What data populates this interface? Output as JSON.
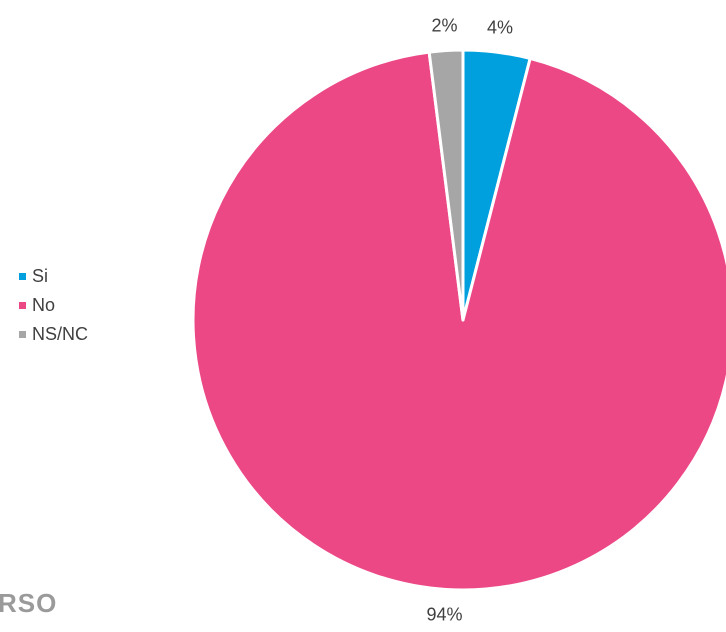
{
  "chart_data": {
    "type": "pie",
    "title": "",
    "slices": [
      {
        "label": "Si",
        "value": 4,
        "display": "4%",
        "color": "#00A0DF"
      },
      {
        "label": "No",
        "value": 94,
        "display": "94%",
        "color": "#EC4886"
      },
      {
        "label": "NS/NC",
        "value": 2,
        "display": "2%",
        "color": "#A6A6A6"
      }
    ],
    "legend_position": "left"
  },
  "watermark": "RSO"
}
